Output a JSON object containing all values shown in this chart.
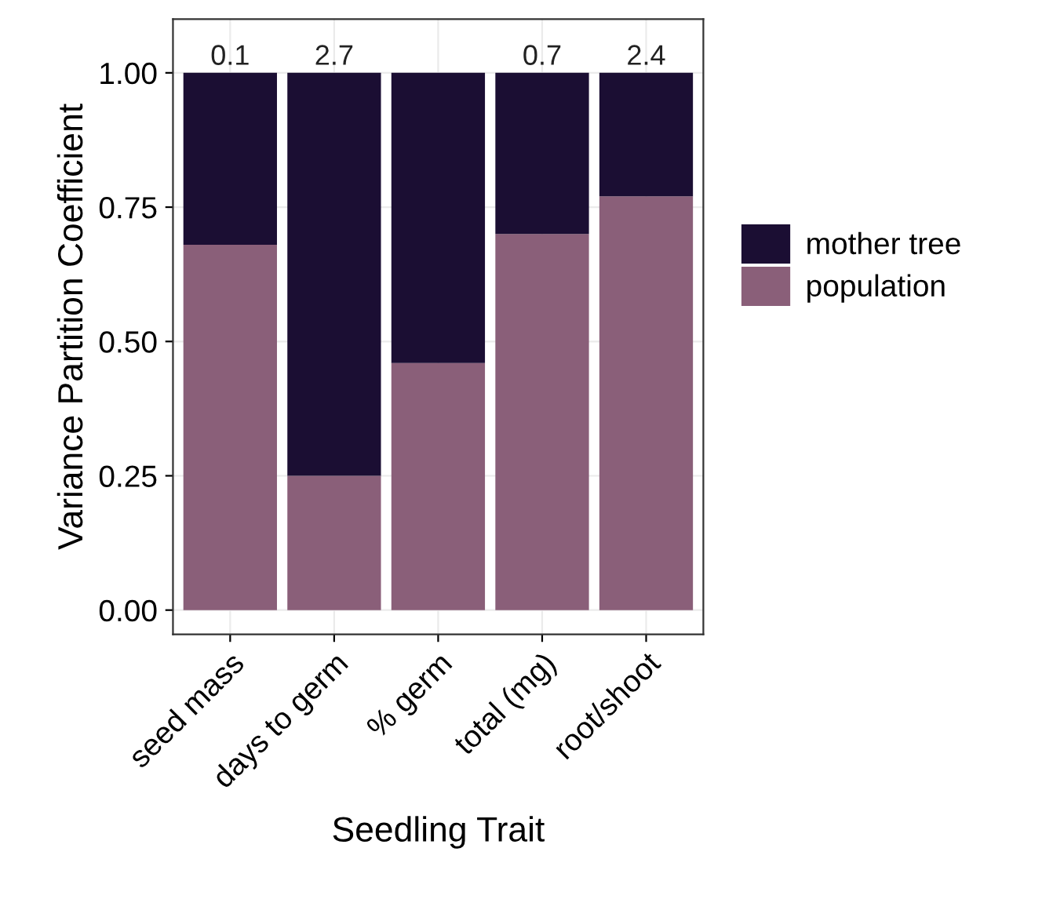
{
  "chart_data": {
    "type": "bar",
    "stacked": true,
    "xlabel": "Seedling Trait",
    "ylabel": "Variance Partition Coefficient",
    "categories": [
      "seed mass",
      "days to germ",
      "% germ",
      "total (mg)",
      "root/shoot"
    ],
    "series": [
      {
        "name": "population",
        "color": "#8a5f79",
        "values": [
          0.68,
          0.25,
          0.46,
          0.7,
          0.77
        ]
      },
      {
        "name": "mother tree",
        "color": "#1b0e33",
        "values": [
          0.32,
          0.75,
          0.54,
          0.3,
          0.23
        ]
      }
    ],
    "annotations": [
      {
        "text": "0.1",
        "x": "seed mass",
        "y": 1
      },
      {
        "text": "2.7",
        "x": "days to germ",
        "y": 1
      },
      {
        "text": "0.7",
        "x": "total (mg)",
        "y": 1
      },
      {
        "text": "2.4",
        "x": "root/shoot",
        "y": 1
      }
    ],
    "ylim": [
      -0.045,
      1.1
    ],
    "yticks": [
      {
        "value": 0,
        "label": "0.00"
      },
      {
        "value": 0.25,
        "label": "0.25"
      },
      {
        "value": 0.5,
        "label": "0.50"
      },
      {
        "value": 0.75,
        "label": "0.75"
      },
      {
        "value": 1,
        "label": "1.00"
      }
    ],
    "grid": true,
    "legend": "right"
  }
}
